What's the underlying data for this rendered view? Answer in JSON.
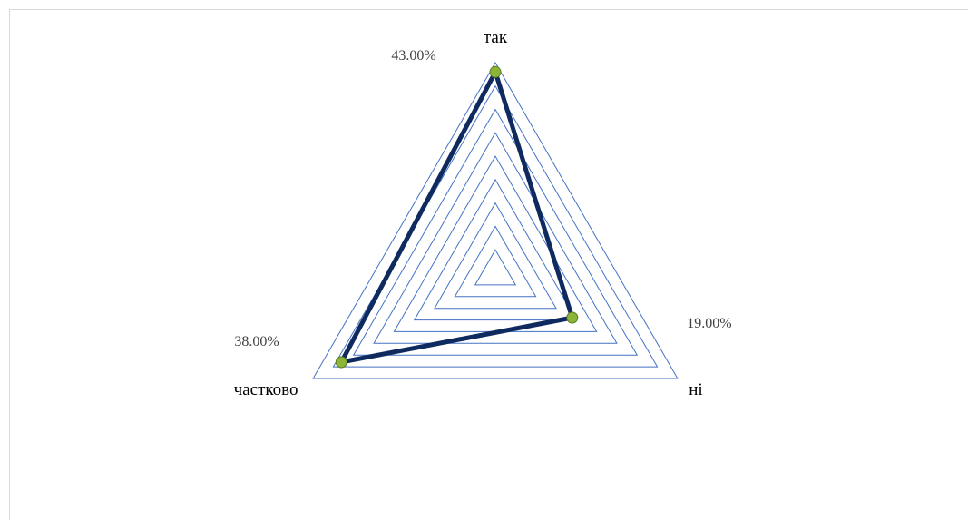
{
  "chart_data": {
    "type": "radar",
    "categories": [
      "так",
      "ні",
      "частково"
    ],
    "values": [
      43.0,
      19.0,
      38.0
    ],
    "value_labels": [
      "43.00%",
      "19.00%",
      "38.00%"
    ],
    "rmax": 45,
    "grid_rings": 9,
    "grid": true,
    "colors": {
      "grid": "#4472c4",
      "series_line": "#0f2a5f",
      "marker": "#8cb43a",
      "marker_edge": "#5a7d1e"
    }
  }
}
